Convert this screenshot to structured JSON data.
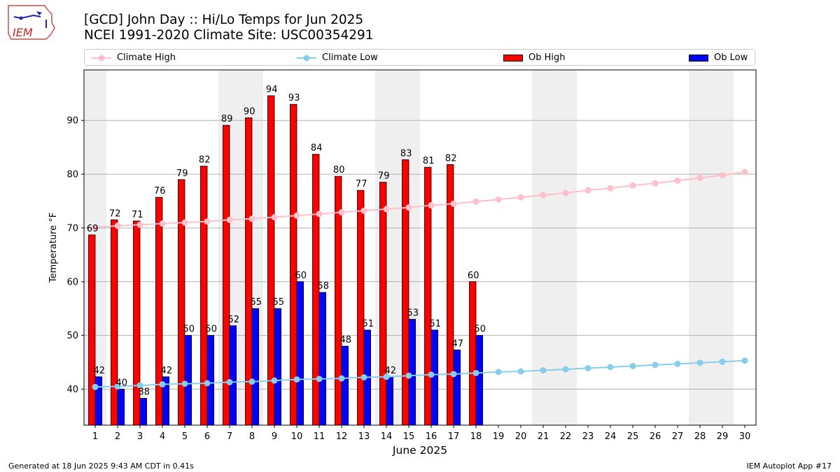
{
  "logo": {
    "text": "IEM",
    "colors": {
      "red": "#cc2222",
      "blue": "#2222aa"
    }
  },
  "title_line1": "[GCD] John Day :: Hi/Lo Temps for Jun 2025",
  "title_line2": "NCEI 1991-2020 Climate Site: USC00354291",
  "footer_left": "Generated at 18 Jun 2025 9:43 AM CDT in 0.41s",
  "footer_right": "IEM Autoplot App #17",
  "chart_data": {
    "type": "bar",
    "xlabel": "June 2025",
    "ylabel": "Temperature °F",
    "ylim": [
      33.3,
      99.4
    ],
    "yticks": [
      40,
      50,
      60,
      70,
      80,
      90
    ],
    "grid": true,
    "legend_placement": "top",
    "days": [
      1,
      2,
      3,
      4,
      5,
      6,
      7,
      8,
      9,
      10,
      11,
      12,
      13,
      14,
      15,
      16,
      17,
      18,
      19,
      20,
      21,
      22,
      23,
      24,
      25,
      26,
      27,
      28,
      29,
      30
    ],
    "weekend_days": [
      1,
      7,
      8,
      14,
      15,
      21,
      22,
      28,
      29
    ],
    "series": [
      {
        "name": "Climate High",
        "kind": "line",
        "color": "#ffc0cb",
        "values": [
          70.1,
          70.4,
          70.6,
          70.8,
          71.0,
          71.2,
          71.5,
          71.7,
          72.0,
          72.3,
          72.6,
          72.9,
          73.2,
          73.5,
          73.8,
          74.2,
          74.5,
          74.9,
          75.3,
          75.7,
          76.1,
          76.5,
          77.0,
          77.4,
          77.9,
          78.3,
          78.8,
          79.3,
          79.8,
          80.4
        ]
      },
      {
        "name": "Climate Low",
        "kind": "line",
        "color": "#87ceeb",
        "values": [
          40.4,
          40.5,
          40.7,
          40.9,
          41.0,
          41.1,
          41.3,
          41.4,
          41.6,
          41.8,
          41.9,
          42.0,
          42.2,
          42.3,
          42.5,
          42.7,
          42.8,
          43.0,
          43.2,
          43.3,
          43.5,
          43.7,
          43.9,
          44.1,
          44.3,
          44.5,
          44.7,
          44.9,
          45.1,
          45.3
        ]
      },
      {
        "name": "Ob High",
        "kind": "bar",
        "color": "#ff0000",
        "values": [
          69,
          72,
          71,
          76,
          79,
          82,
          89,
          90,
          94,
          93,
          84,
          80,
          77,
          79,
          83,
          81,
          82,
          60
        ]
      },
      {
        "name": "Ob Low",
        "kind": "bar",
        "color": "#0000ff",
        "values": [
          42,
          40,
          38,
          42,
          50,
          50,
          52,
          55,
          55,
          60,
          58,
          48,
          51,
          42,
          53,
          51,
          47,
          50
        ]
      }
    ],
    "high_bar_heights": [
      68.7,
      71.5,
      71.3,
      75.7,
      79.0,
      81.5,
      89.1,
      90.5,
      94.6,
      93.0,
      83.7,
      79.6,
      77.0,
      78.5,
      82.7,
      81.3,
      81.8,
      60.0
    ],
    "low_bar_heights": [
      42.3,
      40.0,
      38.3,
      42.3,
      50.0,
      50.0,
      51.8,
      55.0,
      55.0,
      60.0,
      58.0,
      48.0,
      51.0,
      42.3,
      53.0,
      51.0,
      47.3,
      50.0
    ]
  }
}
